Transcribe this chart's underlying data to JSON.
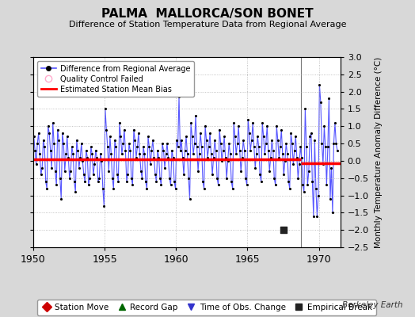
{
  "title": "PALMA  MALLORCA/SON BONET",
  "subtitle": "Difference of Station Temperature Data from Regional Average",
  "ylabel": "Monthly Temperature Anomaly Difference (°C)",
  "xlim": [
    1950,
    1971.5
  ],
  "ylim": [
    -2.5,
    3.0
  ],
  "yticks": [
    -2.5,
    -2,
    -1.5,
    -1,
    -0.5,
    0,
    0.5,
    1,
    1.5,
    2,
    2.5,
    3
  ],
  "xticks": [
    1950,
    1955,
    1960,
    1965,
    1970
  ],
  "background_color": "#d8d8d8",
  "plot_bg_color": "#ffffff",
  "line_color": "#5555ff",
  "dot_color": "#000000",
  "bias_color": "#ff0000",
  "break_line_color": "#777777",
  "bias_value_before": 0.05,
  "bias_value_after": -0.08,
  "break_year": 1968.75,
  "empirical_break_year": 1967.5,
  "empirical_break_y": -2.0,
  "data_x": [
    1950.042,
    1950.125,
    1950.208,
    1950.292,
    1950.375,
    1950.458,
    1950.542,
    1950.625,
    1950.708,
    1950.792,
    1950.875,
    1950.958,
    1951.042,
    1951.125,
    1951.208,
    1951.292,
    1951.375,
    1951.458,
    1951.542,
    1951.625,
    1951.708,
    1951.792,
    1951.875,
    1951.958,
    1952.042,
    1952.125,
    1952.208,
    1952.292,
    1952.375,
    1952.458,
    1952.542,
    1952.625,
    1952.708,
    1952.792,
    1952.875,
    1952.958,
    1953.042,
    1953.125,
    1953.208,
    1953.292,
    1953.375,
    1953.458,
    1953.542,
    1953.625,
    1953.708,
    1953.792,
    1953.875,
    1953.958,
    1954.042,
    1954.125,
    1954.208,
    1954.292,
    1954.375,
    1954.458,
    1954.542,
    1954.625,
    1954.708,
    1954.792,
    1954.875,
    1954.958,
    1955.042,
    1955.125,
    1955.208,
    1955.292,
    1955.375,
    1955.458,
    1955.542,
    1955.625,
    1955.708,
    1955.792,
    1955.875,
    1955.958,
    1956.042,
    1956.125,
    1956.208,
    1956.292,
    1956.375,
    1956.458,
    1956.542,
    1956.625,
    1956.708,
    1956.792,
    1956.875,
    1956.958,
    1957.042,
    1957.125,
    1957.208,
    1957.292,
    1957.375,
    1957.458,
    1957.542,
    1957.625,
    1957.708,
    1957.792,
    1957.875,
    1957.958,
    1958.042,
    1958.125,
    1958.208,
    1958.292,
    1958.375,
    1958.458,
    1958.542,
    1958.625,
    1958.708,
    1958.792,
    1958.875,
    1958.958,
    1959.042,
    1959.125,
    1959.208,
    1959.292,
    1959.375,
    1959.458,
    1959.542,
    1959.625,
    1959.708,
    1959.792,
    1959.875,
    1959.958,
    1960.042,
    1960.125,
    1960.208,
    1960.292,
    1960.375,
    1960.458,
    1960.542,
    1960.625,
    1960.708,
    1960.792,
    1960.875,
    1960.958,
    1961.042,
    1961.125,
    1961.208,
    1961.292,
    1961.375,
    1961.458,
    1961.542,
    1961.625,
    1961.708,
    1961.792,
    1961.875,
    1961.958,
    1962.042,
    1962.125,
    1962.208,
    1962.292,
    1962.375,
    1962.458,
    1962.542,
    1962.625,
    1962.708,
    1962.792,
    1962.875,
    1962.958,
    1963.042,
    1963.125,
    1963.208,
    1963.292,
    1963.375,
    1963.458,
    1963.542,
    1963.625,
    1963.708,
    1963.792,
    1963.875,
    1963.958,
    1964.042,
    1964.125,
    1964.208,
    1964.292,
    1964.375,
    1964.458,
    1964.542,
    1964.625,
    1964.708,
    1964.792,
    1964.875,
    1964.958,
    1965.042,
    1965.125,
    1965.208,
    1965.292,
    1965.375,
    1965.458,
    1965.542,
    1965.625,
    1965.708,
    1965.792,
    1965.875,
    1965.958,
    1966.042,
    1966.125,
    1966.208,
    1966.292,
    1966.375,
    1966.458,
    1966.542,
    1966.625,
    1966.708,
    1966.792,
    1966.875,
    1966.958,
    1967.042,
    1967.125,
    1967.208,
    1967.292,
    1967.375,
    1967.458,
    1967.542,
    1967.625,
    1967.708,
    1967.792,
    1967.875,
    1967.958,
    1968.042,
    1968.125,
    1968.208,
    1968.292,
    1968.375,
    1968.458,
    1968.542,
    1968.625,
    1968.708,
    1968.792,
    1968.875,
    1968.958,
    1969.042,
    1969.125,
    1969.208,
    1969.292,
    1969.375,
    1969.458,
    1969.542,
    1969.625,
    1969.708,
    1969.792,
    1969.875,
    1969.958,
    1970.042,
    1970.125,
    1970.208,
    1970.292,
    1970.375,
    1970.458,
    1970.542,
    1970.625,
    1970.708,
    1970.792,
    1970.875,
    1970.958,
    1971.042,
    1971.125,
    1971.208,
    1971.292
  ],
  "data_y": [
    0.7,
    0.3,
    -0.1,
    0.5,
    0.8,
    0.2,
    -0.4,
    -0.2,
    0.6,
    0.4,
    -0.6,
    -0.8,
    1.0,
    0.8,
    0.3,
    -0.2,
    1.1,
    0.5,
    -0.3,
    -0.7,
    0.9,
    0.6,
    -0.5,
    -1.1,
    0.8,
    0.5,
    -0.3,
    0.2,
    0.7,
    0.1,
    -0.5,
    -0.3,
    0.4,
    0.2,
    -0.6,
    -0.9,
    0.6,
    0.3,
    -0.2,
    0.1,
    0.5,
    0.0,
    -0.4,
    -0.6,
    0.3,
    0.1,
    -0.7,
    -0.5,
    0.4,
    0.2,
    -0.4,
    -0.1,
    0.3,
    0.1,
    -0.6,
    -0.5,
    0.2,
    0.0,
    -0.8,
    -1.3,
    1.5,
    0.9,
    0.4,
    -0.3,
    0.7,
    0.2,
    -0.5,
    -0.8,
    0.6,
    0.4,
    -0.4,
    -0.6,
    1.1,
    0.7,
    0.2,
    0.5,
    0.9,
    0.3,
    -0.6,
    -0.4,
    0.5,
    0.3,
    -0.5,
    -0.7,
    0.9,
    0.6,
    0.1,
    0.4,
    0.8,
    0.2,
    -0.3,
    -0.5,
    0.4,
    0.2,
    -0.6,
    -0.8,
    0.7,
    0.4,
    -0.1,
    0.3,
    0.6,
    0.1,
    -0.4,
    -0.6,
    0.3,
    0.1,
    -0.5,
    -0.7,
    0.5,
    0.3,
    -0.2,
    0.2,
    0.5,
    0.1,
    -0.5,
    -0.7,
    0.3,
    0.1,
    -0.6,
    -0.8,
    0.6,
    0.4,
    1.85,
    0.3,
    0.6,
    0.1,
    -0.4,
    0.3,
    0.7,
    0.2,
    -0.5,
    -1.1,
    1.1,
    0.7,
    0.2,
    0.5,
    1.3,
    0.4,
    -0.3,
    0.2,
    0.8,
    0.4,
    -0.6,
    -0.8,
    1.0,
    0.6,
    0.1,
    0.4,
    0.8,
    0.2,
    -0.4,
    0.1,
    0.6,
    0.3,
    -0.5,
    -0.7,
    0.9,
    0.5,
    0.0,
    0.3,
    0.7,
    0.1,
    -0.5,
    0.0,
    0.5,
    0.2,
    -0.6,
    -0.8,
    1.1,
    0.7,
    0.2,
    0.5,
    1.0,
    0.3,
    -0.3,
    0.1,
    0.6,
    0.3,
    -0.5,
    -0.7,
    1.2,
    0.8,
    0.3,
    0.6,
    1.1,
    0.4,
    -0.2,
    0.2,
    0.7,
    0.4,
    -0.4,
    -0.6,
    1.1,
    0.7,
    0.2,
    0.5,
    1.0,
    0.3,
    -0.3,
    0.1,
    0.6,
    0.3,
    -0.5,
    -0.7,
    1.0,
    0.6,
    0.1,
    0.4,
    0.9,
    0.2,
    -0.4,
    0.0,
    0.5,
    0.2,
    -0.6,
    -0.8,
    0.8,
    0.5,
    -0.1,
    0.3,
    0.7,
    0.1,
    -0.5,
    -0.1,
    0.4,
    0.1,
    -0.7,
    -0.9,
    1.5,
    0.4,
    -0.7,
    -0.3,
    0.7,
    0.8,
    -0.6,
    -1.6,
    0.6,
    -0.8,
    -1.6,
    -1.0,
    2.2,
    1.7,
    0.5,
    -0.1,
    1.0,
    0.4,
    -0.7,
    0.4,
    1.8,
    -1.1,
    -0.2,
    -1.5,
    0.5,
    1.1,
    0.5,
    0.3
  ],
  "berkeley_earth_text": "Berkeley Earth",
  "legend1_items": [
    {
      "label": "Difference from Regional Average",
      "color": "#5555ff",
      "marker": "o",
      "markercolor": "#000000",
      "linestyle": "-"
    },
    {
      "label": "Quality Control Failed",
      "color": "none",
      "marker": "o",
      "markercolor": "#ffaacc",
      "linestyle": "none"
    },
    {
      "label": "Estimated Station Mean Bias",
      "color": "#ff0000",
      "marker": "none",
      "markercolor": "none",
      "linestyle": "-"
    }
  ],
  "legend2_items": [
    {
      "label": "Station Move",
      "color": "#cc0000",
      "marker": "D",
      "linestyle": "none"
    },
    {
      "label": "Record Gap",
      "color": "#006600",
      "marker": "^",
      "linestyle": "none"
    },
    {
      "label": "Time of Obs. Change",
      "color": "#3333cc",
      "marker": "v",
      "linestyle": "none"
    },
    {
      "label": "Empirical Break",
      "color": "#222222",
      "marker": "s",
      "linestyle": "none"
    }
  ]
}
